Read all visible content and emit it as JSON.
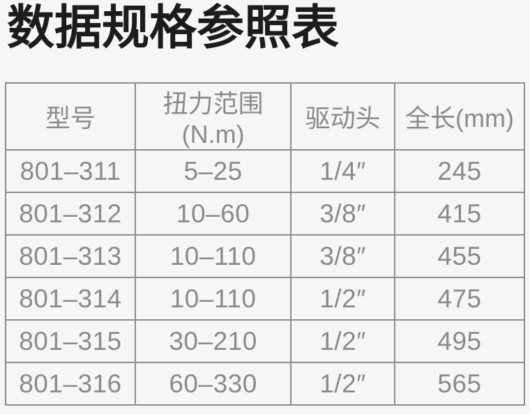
{
  "page": {
    "title": "数据规格参照表",
    "background_color": "#f5f6f5",
    "title_color": "#1c1c1c"
  },
  "table": {
    "border_color": "#8c8c8c",
    "text_color": "#8a8a8a",
    "headers": [
      "型号",
      "扭力范围(N.m)",
      "驱动头",
      "全长(mm)"
    ],
    "rows": [
      [
        "801–311",
        "5–25",
        "1/4″",
        "245"
      ],
      [
        "801–312",
        "10–60",
        "3/8″",
        "415"
      ],
      [
        "801–313",
        "10–110",
        "3/8″",
        "455"
      ],
      [
        "801–314",
        "10–110",
        "1/2″",
        "475"
      ],
      [
        "801–315",
        "30–210",
        "1/2″",
        "495"
      ],
      [
        "801–316",
        "60–330",
        "1/2″",
        "565"
      ]
    ]
  }
}
